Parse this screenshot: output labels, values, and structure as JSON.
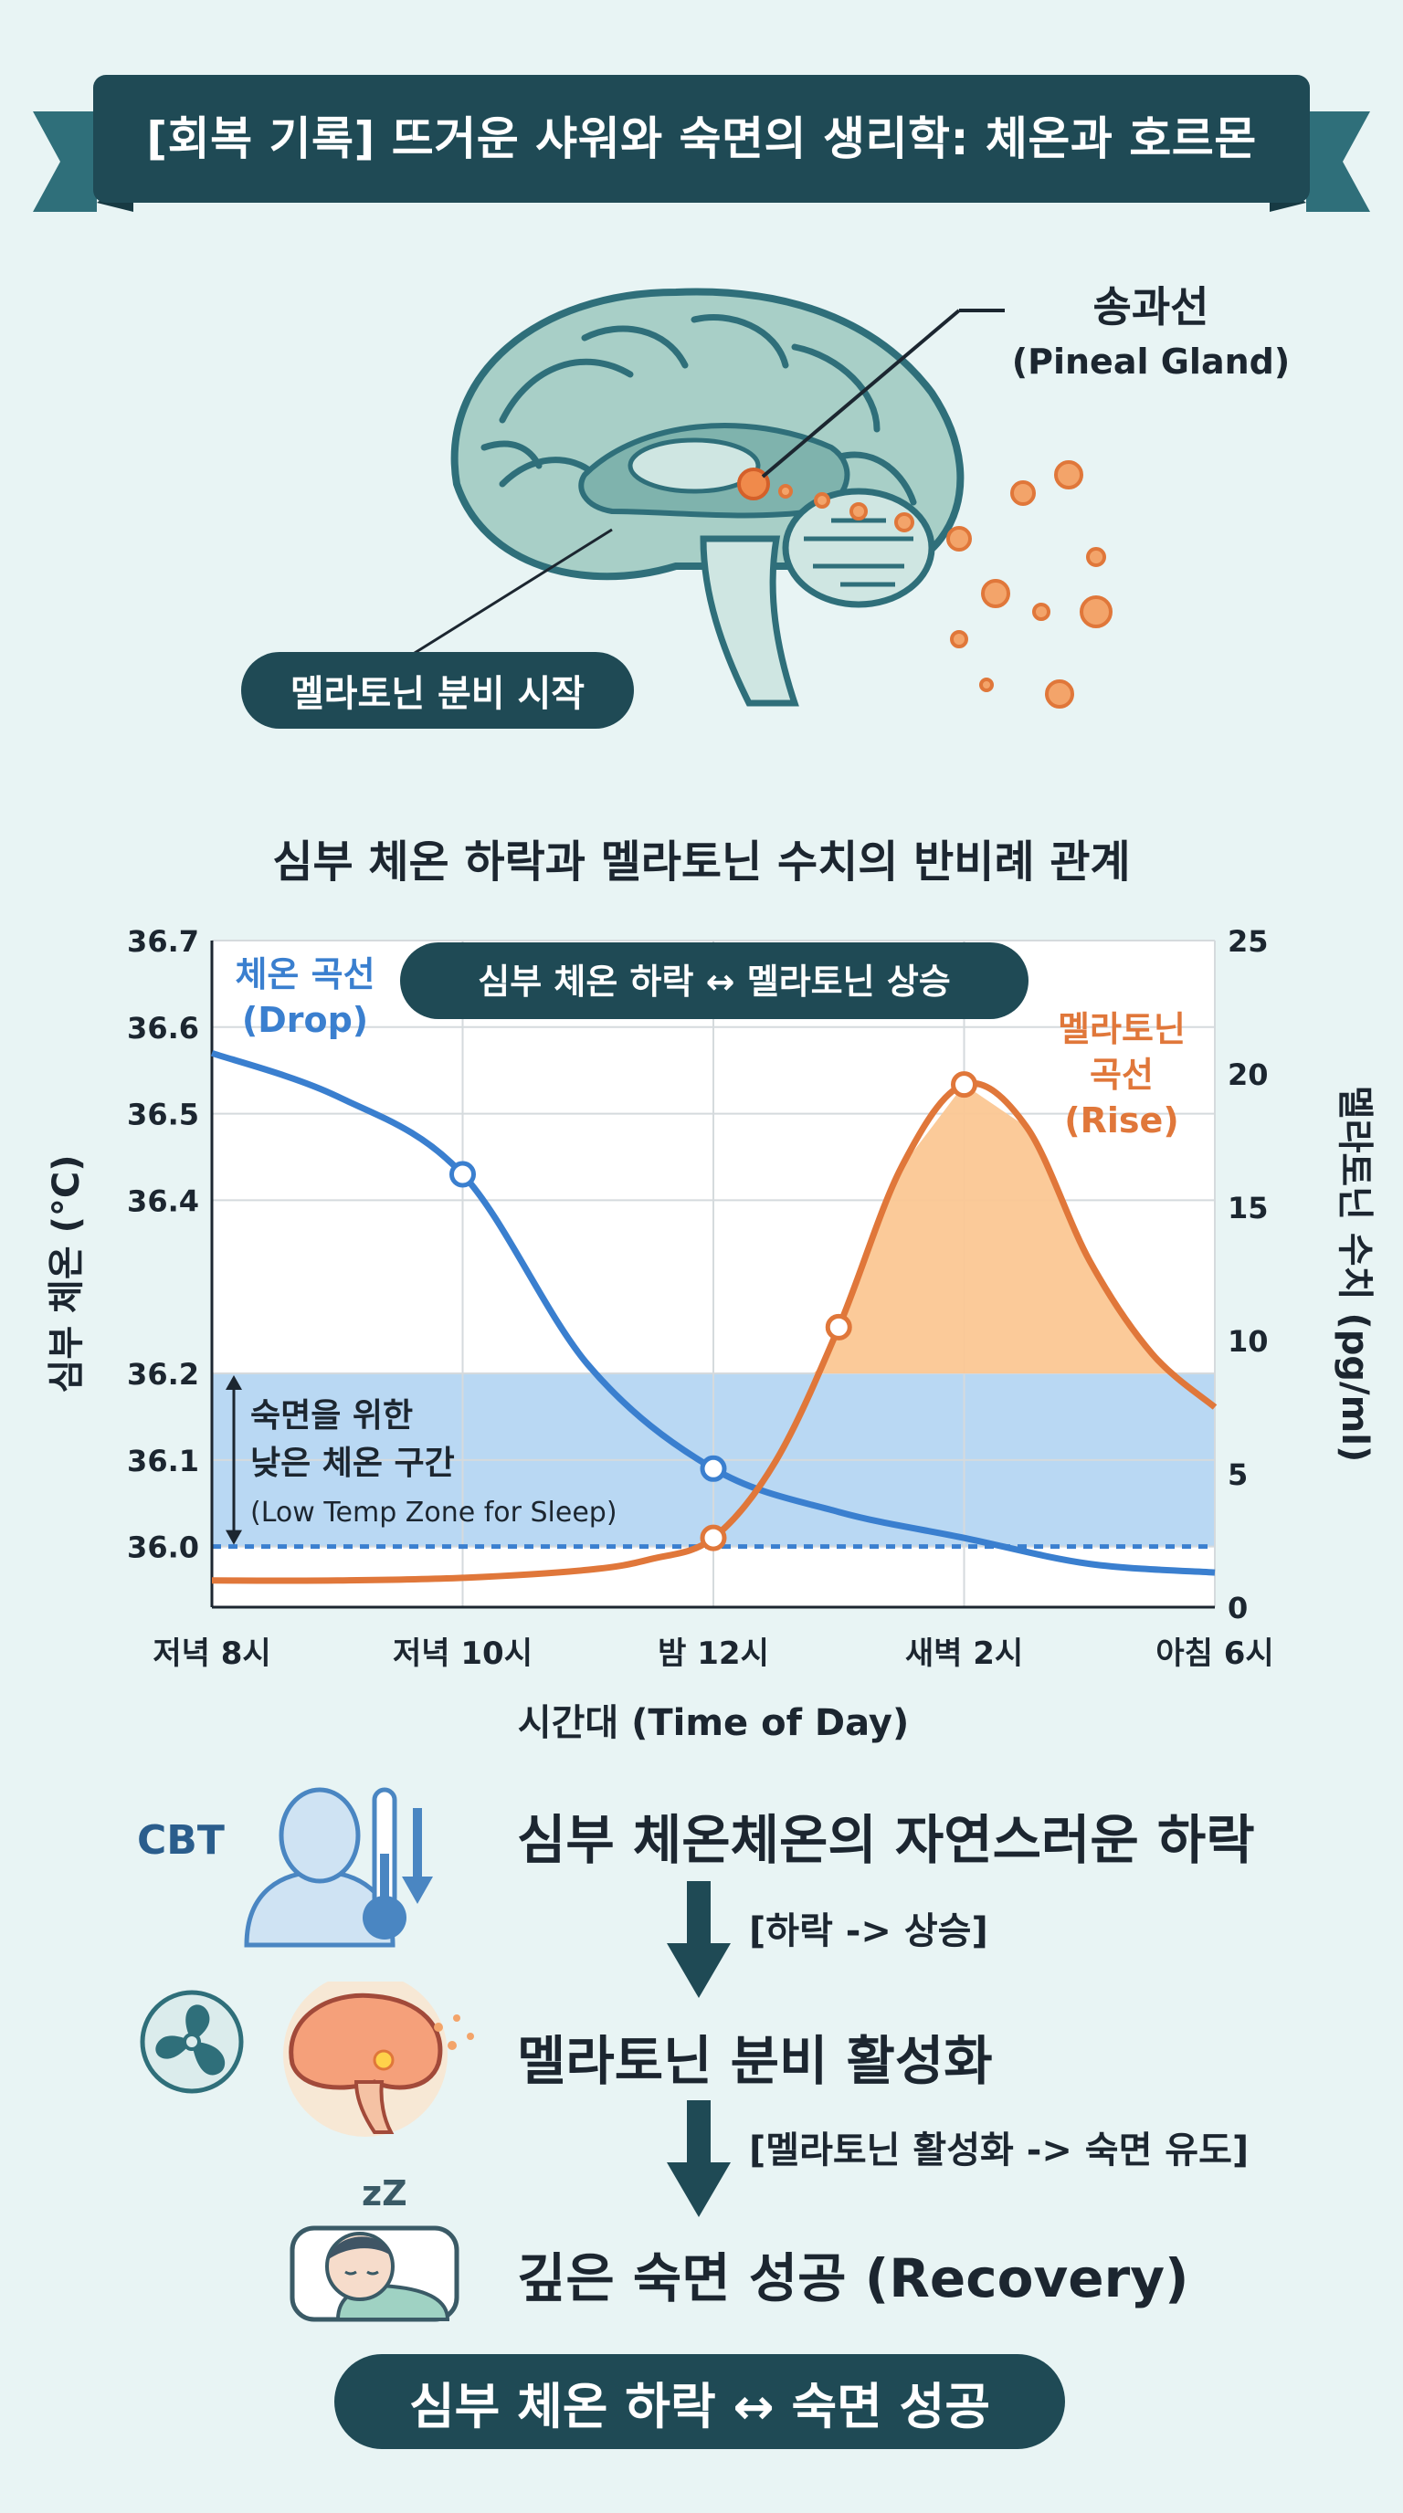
{
  "banner": {
    "title": "[회복 기록] 뜨거운 샤워와 숙면의 생리학: 체온과 호르몬"
  },
  "brain": {
    "pineal_label": "송과선",
    "pineal_label_en": "(Pineal Gland)",
    "secretion_label": "멜라토닌 분비 시작"
  },
  "chart_title": "심부 체온 하락과 멜라토닌 수치의 반비례 관계",
  "chart_data": {
    "type": "line",
    "title": "심부 체온 하락과 멜라토닌 수치의 반비례 관계",
    "banner_label": "심부 체온 하락 ↔ 멜라토닌 상승",
    "xlabel": "시간대 (Time of Day)",
    "x_ticks": [
      "저녁 8시",
      "저녁 10시",
      "밤 12시",
      "새벽 2시",
      "아침 6시"
    ],
    "x_hours": [
      0,
      2,
      4,
      6,
      8
    ],
    "ylabel_left": "심부 체온 (°C)",
    "ylabel_right": "멜라토닌 수치 (pg/ml)",
    "ylim_left": [
      35.93,
      36.7
    ],
    "yticks_left": [
      36.0,
      36.1,
      36.2,
      36.4,
      36.5,
      36.6,
      36.7
    ],
    "ytick_labels_left": [
      "36.0",
      "36.1",
      "36.2",
      "36.4",
      "36.5",
      "36.6",
      "36.7"
    ],
    "ylim_right": [
      0,
      25
    ],
    "yticks_right": [
      0,
      5,
      10,
      15,
      20,
      25
    ],
    "grid": true,
    "low_temp_zone": {
      "from": 36.0,
      "to": 36.2,
      "label_line1": "숙면을 위한",
      "label_line2": "낮은 체온 구간",
      "label_line3": "(Low Temp Zone for Sleep)"
    },
    "series": [
      {
        "name": "체온 곡선",
        "tag": "(Drop)",
        "axis": "left",
        "color": "#3a7fcf",
        "x": [
          0,
          1,
          2,
          3,
          4,
          5,
          6,
          7,
          8
        ],
        "values": [
          36.57,
          36.52,
          36.43,
          36.21,
          36.09,
          36.04,
          36.01,
          35.98,
          35.97
        ],
        "markers_x": [
          2,
          4
        ]
      },
      {
        "name": "멜라토닌 곡선",
        "tag": "(Rise)",
        "axis": "right",
        "color": "#e0773a",
        "fill": "#fbc794",
        "x": [
          0,
          1,
          2,
          3,
          3.5,
          4,
          4.5,
          5,
          5.5,
          6,
          6.5,
          7,
          7.5,
          8
        ],
        "values": [
          1.0,
          1.0,
          1.1,
          1.4,
          1.8,
          2.6,
          5.5,
          10.5,
          16.5,
          19.6,
          18.0,
          13.0,
          9.5,
          7.5
        ],
        "markers_x": [
          4,
          5,
          6
        ]
      }
    ]
  },
  "flow": {
    "cbt_label": "CBT",
    "step1": "심부 체온체온의 자연스러운 하락",
    "note1": "[하락 -> 상승]",
    "step2": "멜라토닌 분비 활성화",
    "note2": "[멜라토닌 활성화 -> 숙면 유도]",
    "step3": "깊은 숙면 성공 (Recovery)",
    "sleep_z": "zZ",
    "bottom": "심부 체온 하락 ↔ 숙면 성공"
  },
  "colors": {
    "teal_dark": "#1f4a55",
    "blue": "#3a7fcf",
    "orange": "#e0773a",
    "zone": "#b9d8f3"
  }
}
